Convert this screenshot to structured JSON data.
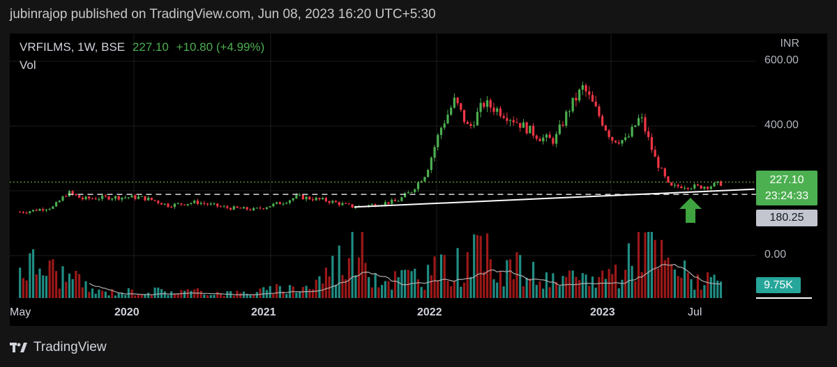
{
  "header": {
    "published": "jubinrajop published on TradingView.com, Jun 08, 2023 16:20 UTC+5:30"
  },
  "legend": {
    "symbol": "VRFILMS, 1W, BSE",
    "price": "227.10",
    "change": "+10.80 (+4.99%)",
    "volume_label": "Vol"
  },
  "axis": {
    "currency": "INR",
    "y_ticks": [
      "600.00",
      "400.00",
      "0.00"
    ],
    "x_ticks": [
      {
        "label": "May",
        "major": false
      },
      {
        "label": "2020",
        "major": true
      },
      {
        "label": "2021",
        "major": true
      },
      {
        "label": "2022",
        "major": true
      },
      {
        "label": "2023",
        "major": true
      },
      {
        "label": "Jul",
        "major": false
      }
    ]
  },
  "badges": {
    "last_price": "227.10",
    "countdown": "23:24:33",
    "level": "180.25",
    "volume": "9.75K"
  },
  "brand": {
    "name": "TradingView"
  },
  "colors": {
    "up": "#4caf50",
    "down": "#f23645",
    "volume_up": "#26a69a",
    "volume_down": "#b71c1c",
    "background": "#000000"
  },
  "chart_data": {
    "type": "candlestick",
    "interval": "1W",
    "ylim": [
      110,
      620
    ],
    "x_range": [
      "2019-05-01",
      "2023-08-15"
    ],
    "series": [
      {
        "date": "2019-05",
        "close": 135
      },
      {
        "date": "2019-07",
        "close": 150
      },
      {
        "date": "2019-08",
        "close": 195
      },
      {
        "date": "2019-09",
        "close": 175
      },
      {
        "date": "2019-11",
        "close": 180
      },
      {
        "date": "2020-01",
        "close": 180
      },
      {
        "date": "2020-02",
        "close": 170
      },
      {
        "date": "2020-03",
        "close": 155
      },
      {
        "date": "2020-05",
        "close": 165
      },
      {
        "date": "2020-07",
        "close": 148
      },
      {
        "date": "2020-09",
        "close": 142
      },
      {
        "date": "2020-11",
        "close": 165
      },
      {
        "date": "2020-12",
        "close": 182
      },
      {
        "date": "2021-02",
        "close": 170
      },
      {
        "date": "2021-04",
        "close": 150
      },
      {
        "date": "2021-05",
        "close": 155
      },
      {
        "date": "2021-07",
        "close": 168
      },
      {
        "date": "2021-08",
        "close": 200
      },
      {
        "date": "2021-09",
        "close": 255
      },
      {
        "date": "2021-10",
        "close": 390
      },
      {
        "date": "2021-11",
        "close": 480
      },
      {
        "date": "2021-12",
        "close": 390
      },
      {
        "date": "2022-01",
        "close": 470
      },
      {
        "date": "2022-02",
        "close": 450
      },
      {
        "date": "2022-03",
        "close": 425
      },
      {
        "date": "2022-05",
        "close": 365
      },
      {
        "date": "2022-06",
        "close": 355
      },
      {
        "date": "2022-07",
        "close": 450
      },
      {
        "date": "2022-08",
        "close": 520
      },
      {
        "date": "2022-09",
        "close": 440
      },
      {
        "date": "2022-10",
        "close": 360
      },
      {
        "date": "2022-11",
        "close": 355
      },
      {
        "date": "2022-12",
        "close": 430
      },
      {
        "date": "2023-01",
        "close": 300
      },
      {
        "date": "2023-02",
        "close": 210
      },
      {
        "date": "2023-03",
        "close": 216
      },
      {
        "date": "2023-04",
        "close": 212
      },
      {
        "date": "2023-05",
        "close": 216
      },
      {
        "date": "2023-06",
        "close": 227.1
      }
    ],
    "volume": [
      {
        "date": "2019-06",
        "value": 0.55
      },
      {
        "date": "2019-08",
        "value": 0.35
      },
      {
        "date": "2019-10",
        "value": 0.1
      },
      {
        "date": "2020-03",
        "value": 0.12
      },
      {
        "date": "2020-08",
        "value": 0.08
      },
      {
        "date": "2021-01",
        "value": 0.2
      },
      {
        "date": "2021-04",
        "value": 0.85
      },
      {
        "date": "2021-06",
        "value": 0.3
      },
      {
        "date": "2021-10",
        "value": 0.45
      },
      {
        "date": "2022-01",
        "value": 0.7
      },
      {
        "date": "2022-06",
        "value": 0.25
      },
      {
        "date": "2022-09",
        "value": 0.35
      },
      {
        "date": "2022-11",
        "value": 0.5
      },
      {
        "date": "2022-12",
        "value": 1.0
      },
      {
        "date": "2023-02",
        "value": 0.5
      },
      {
        "date": "2023-06",
        "value": 0.17
      }
    ],
    "horizontal_levels": [
      {
        "value": 227.1,
        "style": "dotted"
      },
      {
        "value": 189,
        "style": "dashed"
      }
    ],
    "trendline": {
      "start": {
        "date": "2021-04",
        "value": 150
      },
      "end": {
        "date": "2023-08",
        "value": 205
      }
    }
  }
}
